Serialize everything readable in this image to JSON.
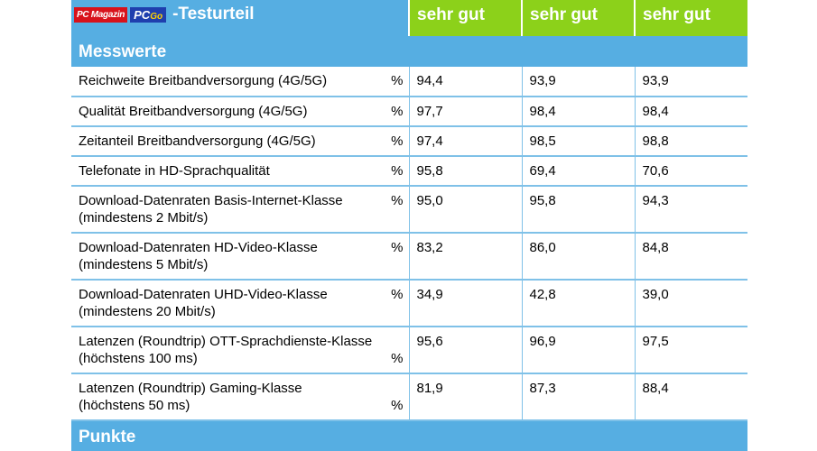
{
  "header": {
    "logo_pcmagazin": "PC Magazin",
    "logo_pcgo_pc": "PC",
    "logo_pcgo_go": "Go",
    "title": "-Testurteil",
    "verdicts": [
      "sehr gut",
      "sehr gut",
      "sehr gut"
    ]
  },
  "sections": {
    "messwerte": "Messwerte",
    "punkte": "Punkte"
  },
  "rows": [
    {
      "label": "Reichweite Breitbandversorgung (4G/5G)",
      "unit": "%",
      "values": [
        "94,4",
        "93,9",
        "93,9"
      ]
    },
    {
      "label": "Qualität Breitbandversorgung (4G/5G)",
      "unit": "%",
      "values": [
        "97,7",
        "98,4",
        "98,4"
      ]
    },
    {
      "label": "Zeitanteil Breitbandversorgung (4G/5G)",
      "unit": "%",
      "values": [
        "97,4",
        "98,5",
        "98,8"
      ]
    },
    {
      "label": "Telefonate in HD-Sprachqualität",
      "unit": "%",
      "values": [
        "95,8",
        "69,4",
        "70,6"
      ]
    },
    {
      "label": "Download-Datenraten Basis-Internet-Klasse",
      "label2": "(mindestens 2 Mbit/s)",
      "unit": "%",
      "values": [
        "95,0",
        "95,8",
        "94,3"
      ]
    },
    {
      "label": "Download-Datenraten HD-Video-Klasse",
      "label2": "(mindestens 5 Mbit/s)",
      "unit": "%",
      "values": [
        "83,2",
        "86,0",
        "84,8"
      ]
    },
    {
      "label": "Download-Datenraten UHD-Video-Klasse",
      "label2": "(mindestens 20 Mbit/s)",
      "unit": "%",
      "values": [
        "34,9",
        "42,8",
        "39,0"
      ]
    },
    {
      "label": "Latenzen (Roundtrip) OTT-Sprachdienste-Klasse",
      "label2": "(höchstens 100 ms)",
      "unit": "%",
      "values": [
        "95,6",
        "96,9",
        "97,5"
      ]
    },
    {
      "label": "Latenzen (Roundtrip) Gaming-Klasse",
      "label2": "(höchstens 50 ms)",
      "unit": "%",
      "values": [
        "81,9",
        "87,3",
        "88,4"
      ]
    }
  ]
}
